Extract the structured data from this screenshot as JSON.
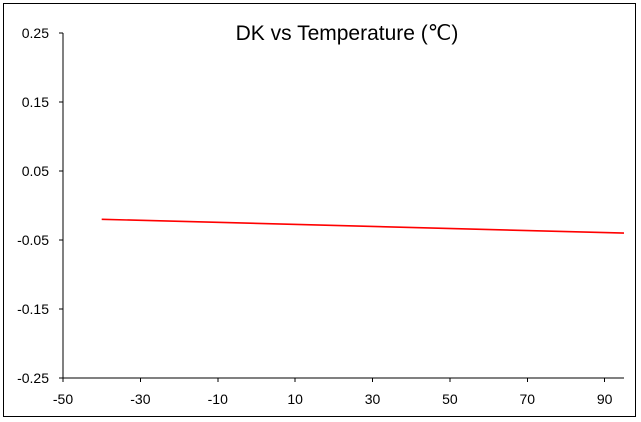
{
  "chart_data": {
    "type": "line",
    "title": "DK vs Temperature (℃)",
    "xlabel": "",
    "ylabel": "",
    "xlim": [
      -50,
      95
    ],
    "ylim": [
      -0.25,
      0.25
    ],
    "x_ticks": [
      -50,
      -30,
      -10,
      10,
      30,
      50,
      70,
      90
    ],
    "y_ticks": [
      "0.25",
      "0.15",
      "0.05",
      "-0.05",
      "-0.15",
      "-0.25"
    ],
    "grid": false,
    "legend": "none",
    "series": [
      {
        "color": "#ff0000",
        "x": [
          -40,
          95
        ],
        "y": [
          -0.02,
          -0.04
        ]
      }
    ]
  }
}
